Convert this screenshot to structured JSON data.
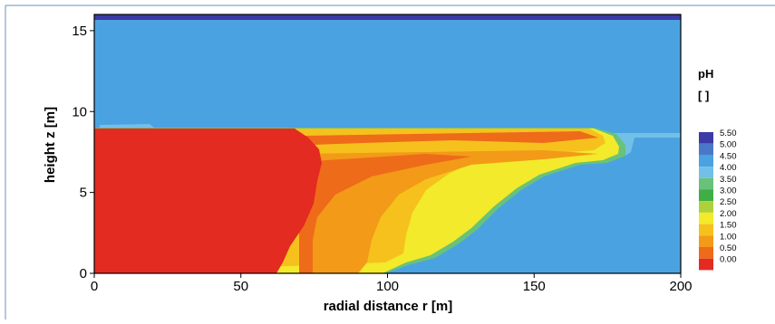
{
  "chart_data": {
    "type": "heatmap",
    "title": "",
    "xlabel": "radial distance r [m]",
    "ylabel": "height z [m]",
    "xlim": [
      0,
      200
    ],
    "ylim": [
      0,
      16
    ],
    "x_ticks": [
      "0",
      "50",
      "100",
      "150",
      "200"
    ],
    "y_ticks": [
      "0",
      "5",
      "10",
      "15"
    ],
    "colorbar": {
      "title": "pH",
      "unit": "[ ]",
      "levels": [
        "5.50",
        "5.00",
        "4.50",
        "4.00",
        "3.50",
        "3.00",
        "2.50",
        "2.00",
        "1.50",
        "1.00",
        "0.50",
        "0.00"
      ],
      "colors": [
        "#3b3aa6",
        "#4a78c9",
        "#4aa3e0",
        "#72c0e8",
        "#69c27a",
        "#3fae45",
        "#aed13a",
        "#f2ea2b",
        "#f6c11c",
        "#f39a18",
        "#ee6b1a",
        "#e32b22"
      ]
    },
    "regions": [
      {
        "name": "dark blue top band",
        "ph": 5.25,
        "z_range": [
          15.65,
          16
        ]
      },
      {
        "name": "upper blue zone",
        "ph": 4.25,
        "z_range": [
          9.0,
          15.65
        ]
      },
      {
        "name": "red core",
        "ph": 0.25,
        "r_range": [
          0,
          76
        ],
        "z_range": [
          0,
          9
        ]
      },
      {
        "name": "mixed yellow/orange plume",
        "ph": 1.5,
        "r_range": [
          70,
          180
        ],
        "z_range": [
          0,
          9
        ]
      },
      {
        "name": "right blue zone",
        "ph": 4.25,
        "r_range": [
          95,
          200
        ],
        "z_range": [
          0,
          8
        ]
      }
    ]
  }
}
